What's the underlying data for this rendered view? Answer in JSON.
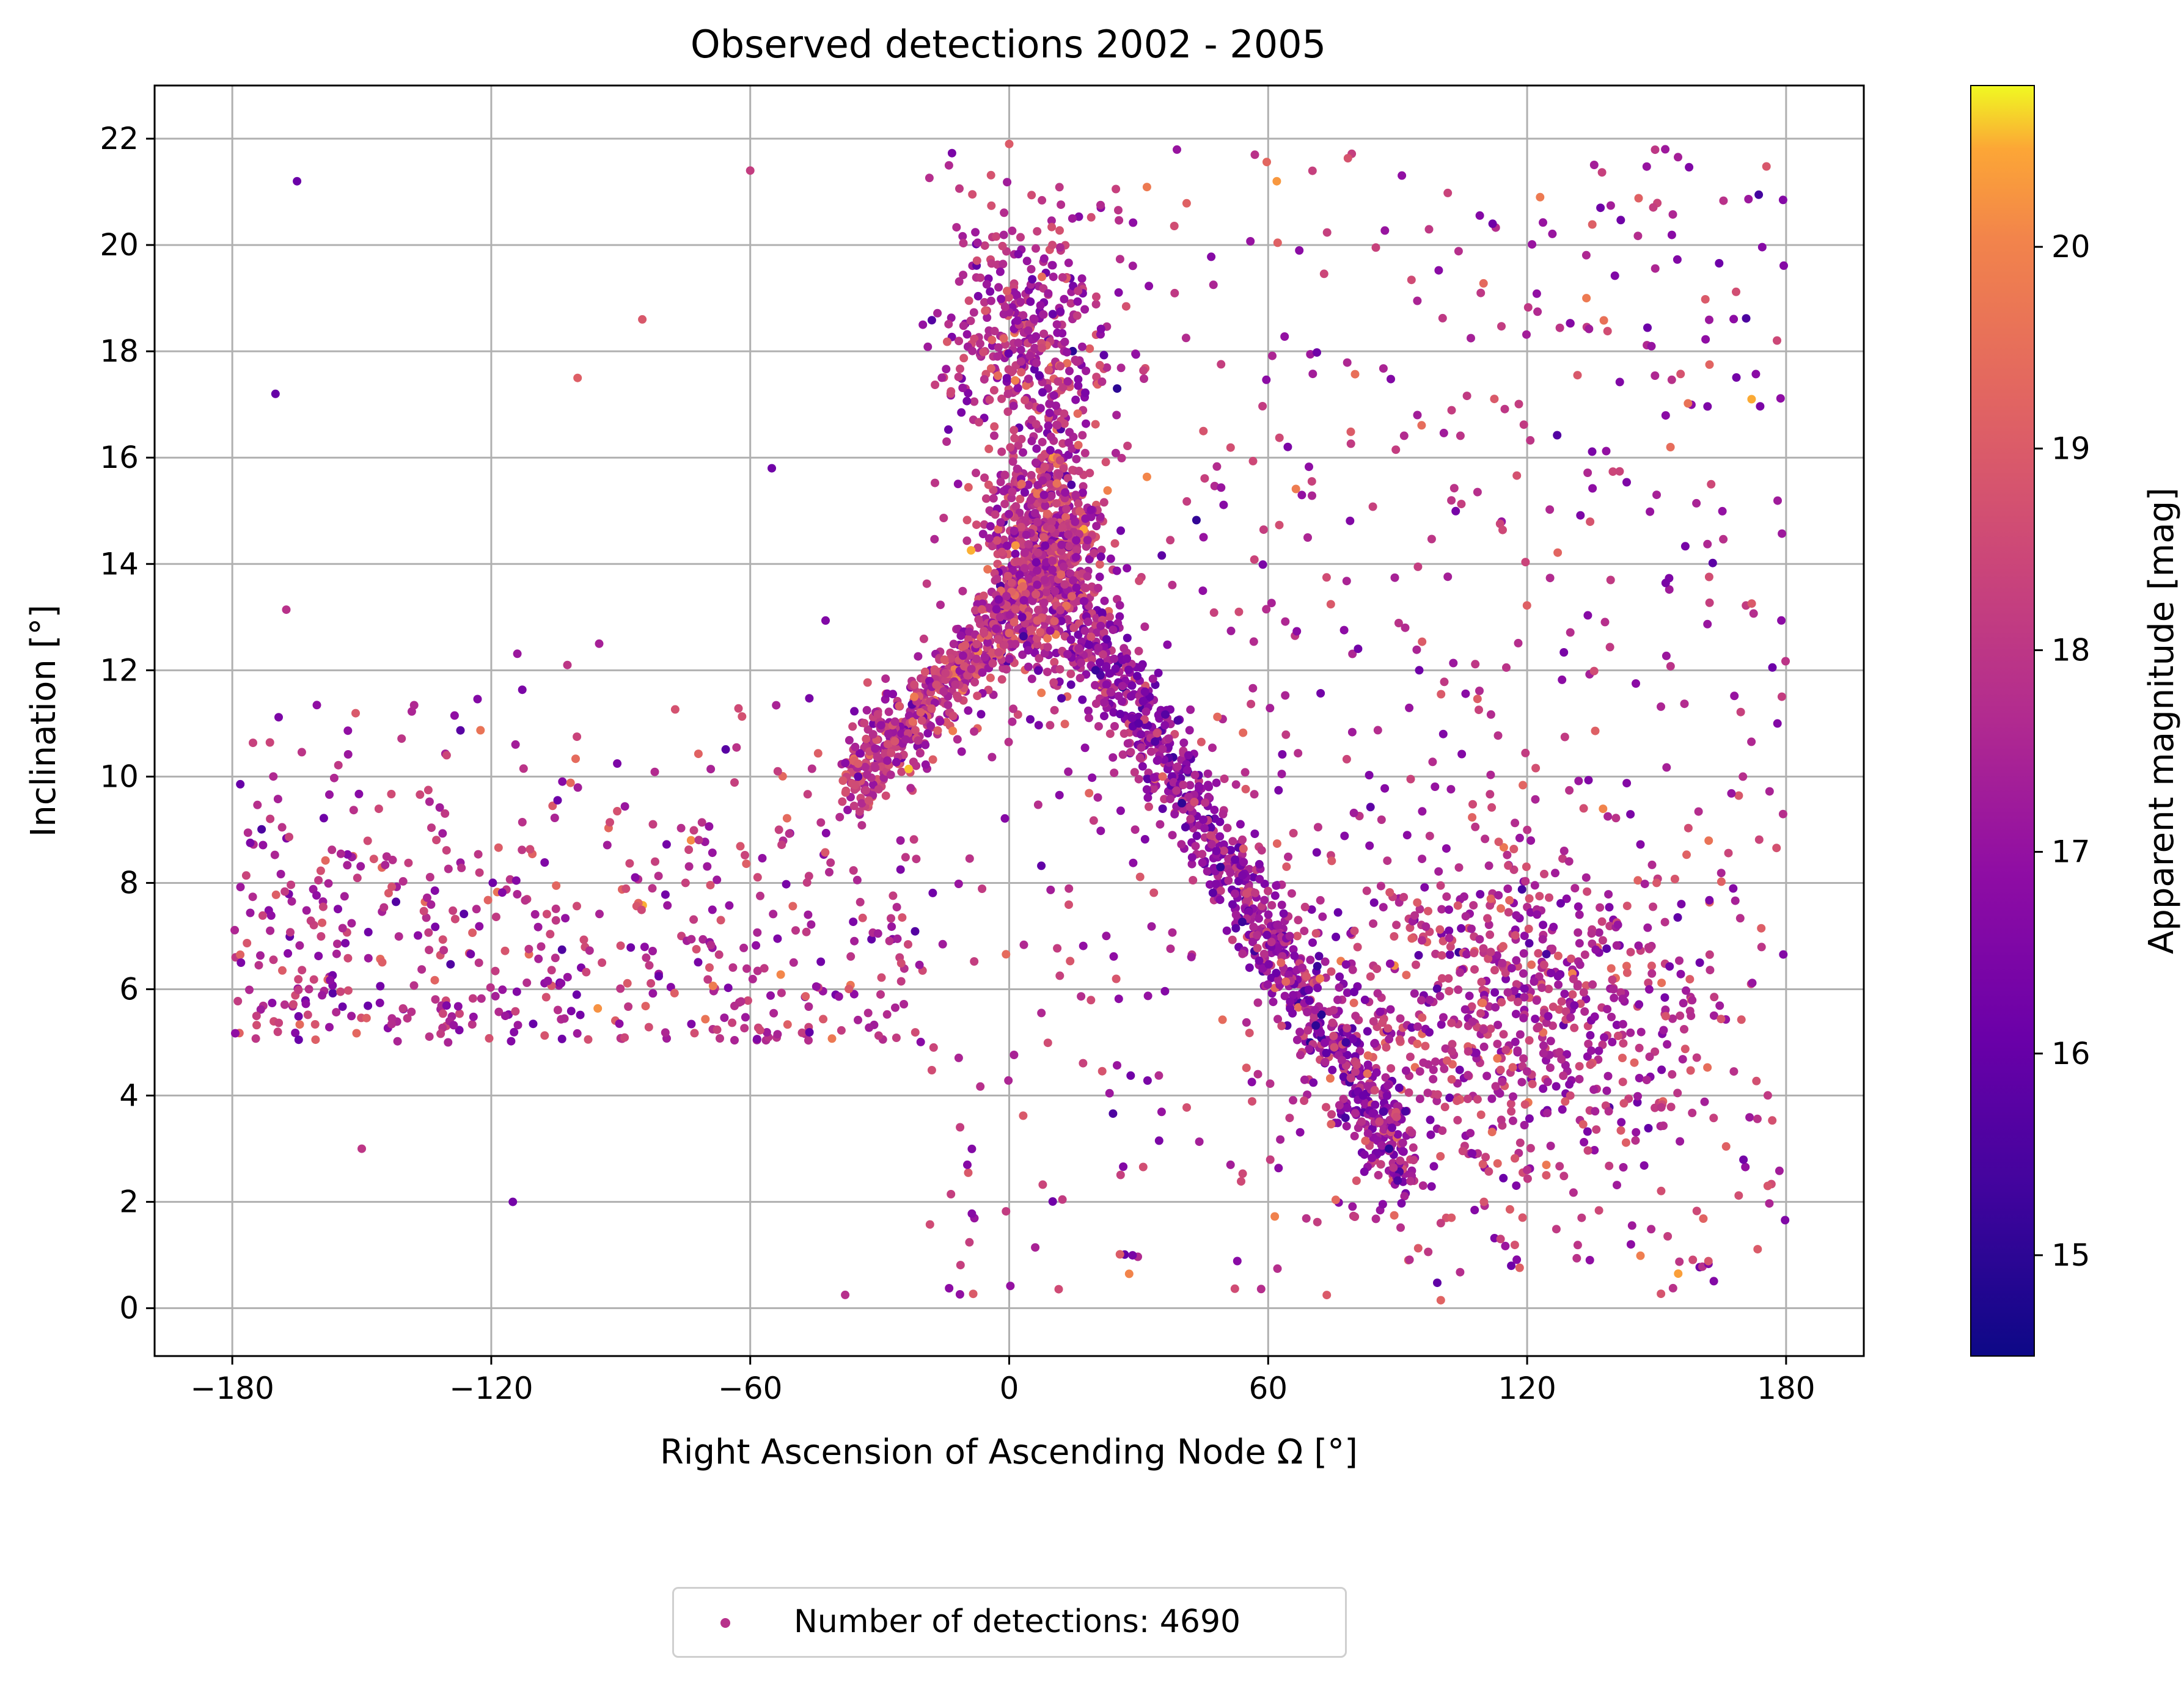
{
  "chart_data": {
    "type": "scatter",
    "title": "Observed detections 2002 - 2005",
    "xlabel": "Right Ascension of Ascending Node Ω [°]",
    "ylabel": "Inclination [°]",
    "xlim": [
      -198,
      198
    ],
    "ylim": [
      -0.9,
      23
    ],
    "xticks": [
      -180,
      -120,
      -60,
      0,
      60,
      120,
      180
    ],
    "xtick_labels": [
      "−180",
      "−120",
      "−60",
      "0",
      "60",
      "120",
      "180"
    ],
    "yticks": [
      0,
      2,
      4,
      6,
      8,
      10,
      12,
      14,
      16,
      18,
      20,
      22
    ],
    "ytick_labels": [
      "0",
      "2",
      "4",
      "6",
      "8",
      "10",
      "12",
      "14",
      "16",
      "18",
      "20",
      "22"
    ],
    "grid": true,
    "colorbar": {
      "label": "Apparent magnitude [mag]",
      "range": [
        14.5,
        20.8
      ],
      "ticks": [
        15,
        16,
        17,
        18,
        19,
        20
      ],
      "tick_labels": [
        "15",
        "16",
        "17",
        "18",
        "19",
        "20"
      ],
      "colormap": "plasma"
    },
    "legend": {
      "label": "Number of detections: 4690",
      "position": "below plot, centered",
      "marker_color": "#b7318b"
    },
    "detection_count": 4690,
    "representative_points": [
      {
        "x": 8,
        "y": 14.5,
        "mag": 18.8
      },
      {
        "x": 5,
        "y": 15.2,
        "mag": 17.6
      },
      {
        "x": 12,
        "y": 13.8,
        "mag": 19.2
      },
      {
        "x": 3,
        "y": 13.0,
        "mag": 16.2
      },
      {
        "x": 15,
        "y": 12.8,
        "mag": 18.4
      },
      {
        "x": -5,
        "y": 13.9,
        "mag": 19.6
      },
      {
        "x": -15,
        "y": 12.2,
        "mag": 18.9
      },
      {
        "x": -22,
        "y": 11.5,
        "mag": 19.8
      },
      {
        "x": -28,
        "y": 10.8,
        "mag": 17.2
      },
      {
        "x": -35,
        "y": 10.0,
        "mag": 16.0
      },
      {
        "x": 20,
        "y": 12.0,
        "mag": 15.2
      },
      {
        "x": 30,
        "y": 11.0,
        "mag": 15.8
      },
      {
        "x": 40,
        "y": 9.5,
        "mag": 15.0
      },
      {
        "x": 48,
        "y": 8.6,
        "mag": 16.4
      },
      {
        "x": 55,
        "y": 7.8,
        "mag": 18.6
      },
      {
        "x": 65,
        "y": 7.0,
        "mag": 17.3
      },
      {
        "x": 72,
        "y": 6.2,
        "mag": 19.9
      },
      {
        "x": 78,
        "y": 5.0,
        "mag": 15.3
      },
      {
        "x": 82,
        "y": 4.0,
        "mag": 16.1
      },
      {
        "x": 88,
        "y": 3.0,
        "mag": 15.0
      },
      {
        "x": 90,
        "y": 2.4,
        "mag": 15.6
      },
      {
        "x": 100,
        "y": 1.6,
        "mag": 18.2
      },
      {
        "x": 110,
        "y": 2.0,
        "mag": 18.8
      },
      {
        "x": 120,
        "y": 2.6,
        "mag": 17.8
      },
      {
        "x": 130,
        "y": 4.0,
        "mag": 18.5
      },
      {
        "x": 140,
        "y": 6.0,
        "mag": 17.5
      },
      {
        "x": 150,
        "y": 8.0,
        "mag": 18.9
      },
      {
        "x": 160,
        "y": 6.5,
        "mag": 16.2
      },
      {
        "x": 170,
        "y": 10.0,
        "mag": 17.8
      },
      {
        "x": 178,
        "y": 11.0,
        "mag": 16.6
      },
      {
        "x": -170,
        "y": 17.2,
        "mag": 16.0
      },
      {
        "x": -165,
        "y": 21.2,
        "mag": 16.1
      },
      {
        "x": -178,
        "y": 6.5,
        "mag": 16.5
      },
      {
        "x": -150,
        "y": 3.0,
        "mag": 18.0
      },
      {
        "x": -130,
        "y": 5.0,
        "mag": 17.5
      },
      {
        "x": -115,
        "y": 2.0,
        "mag": 16.3
      },
      {
        "x": -100,
        "y": 17.5,
        "mag": 19.1
      },
      {
        "x": -85,
        "y": 18.6,
        "mag": 18.9
      },
      {
        "x": -60,
        "y": 21.4,
        "mag": 18.2
      },
      {
        "x": -38,
        "y": 0.25,
        "mag": 17.8
      },
      {
        "x": 0,
        "y": 21.9,
        "mag": 19.0
      },
      {
        "x": 62,
        "y": 21.2,
        "mag": 20.3
      },
      {
        "x": 100,
        "y": 0.15,
        "mag": 19.2
      },
      {
        "x": 155,
        "y": 0.65,
        "mag": 20.4
      },
      {
        "x": 152,
        "y": 21.8,
        "mag": 17.2
      },
      {
        "x": 123,
        "y": 20.9,
        "mag": 19.8
      },
      {
        "x": 112,
        "y": 20.4,
        "mag": 16.2
      },
      {
        "x": 172,
        "y": 17.1,
        "mag": 20.5
      },
      {
        "x": 150,
        "y": 15.3,
        "mag": 17.4
      },
      {
        "x": -95,
        "y": 12.5,
        "mag": 17.4
      },
      {
        "x": -75,
        "y": 8.0,
        "mag": 18.3
      },
      {
        "x": -55,
        "y": 15.8,
        "mag": 16.2
      },
      {
        "x": 45,
        "y": 16.5,
        "mag": 18.8
      },
      {
        "x": 95,
        "y": 12.0,
        "mag": 16.2
      },
      {
        "x": 25,
        "y": 17.3,
        "mag": 15.0
      },
      {
        "x": -20,
        "y": 18.5,
        "mag": 17.0
      },
      {
        "x": 10,
        "y": 20.0,
        "mag": 18.5
      }
    ]
  }
}
